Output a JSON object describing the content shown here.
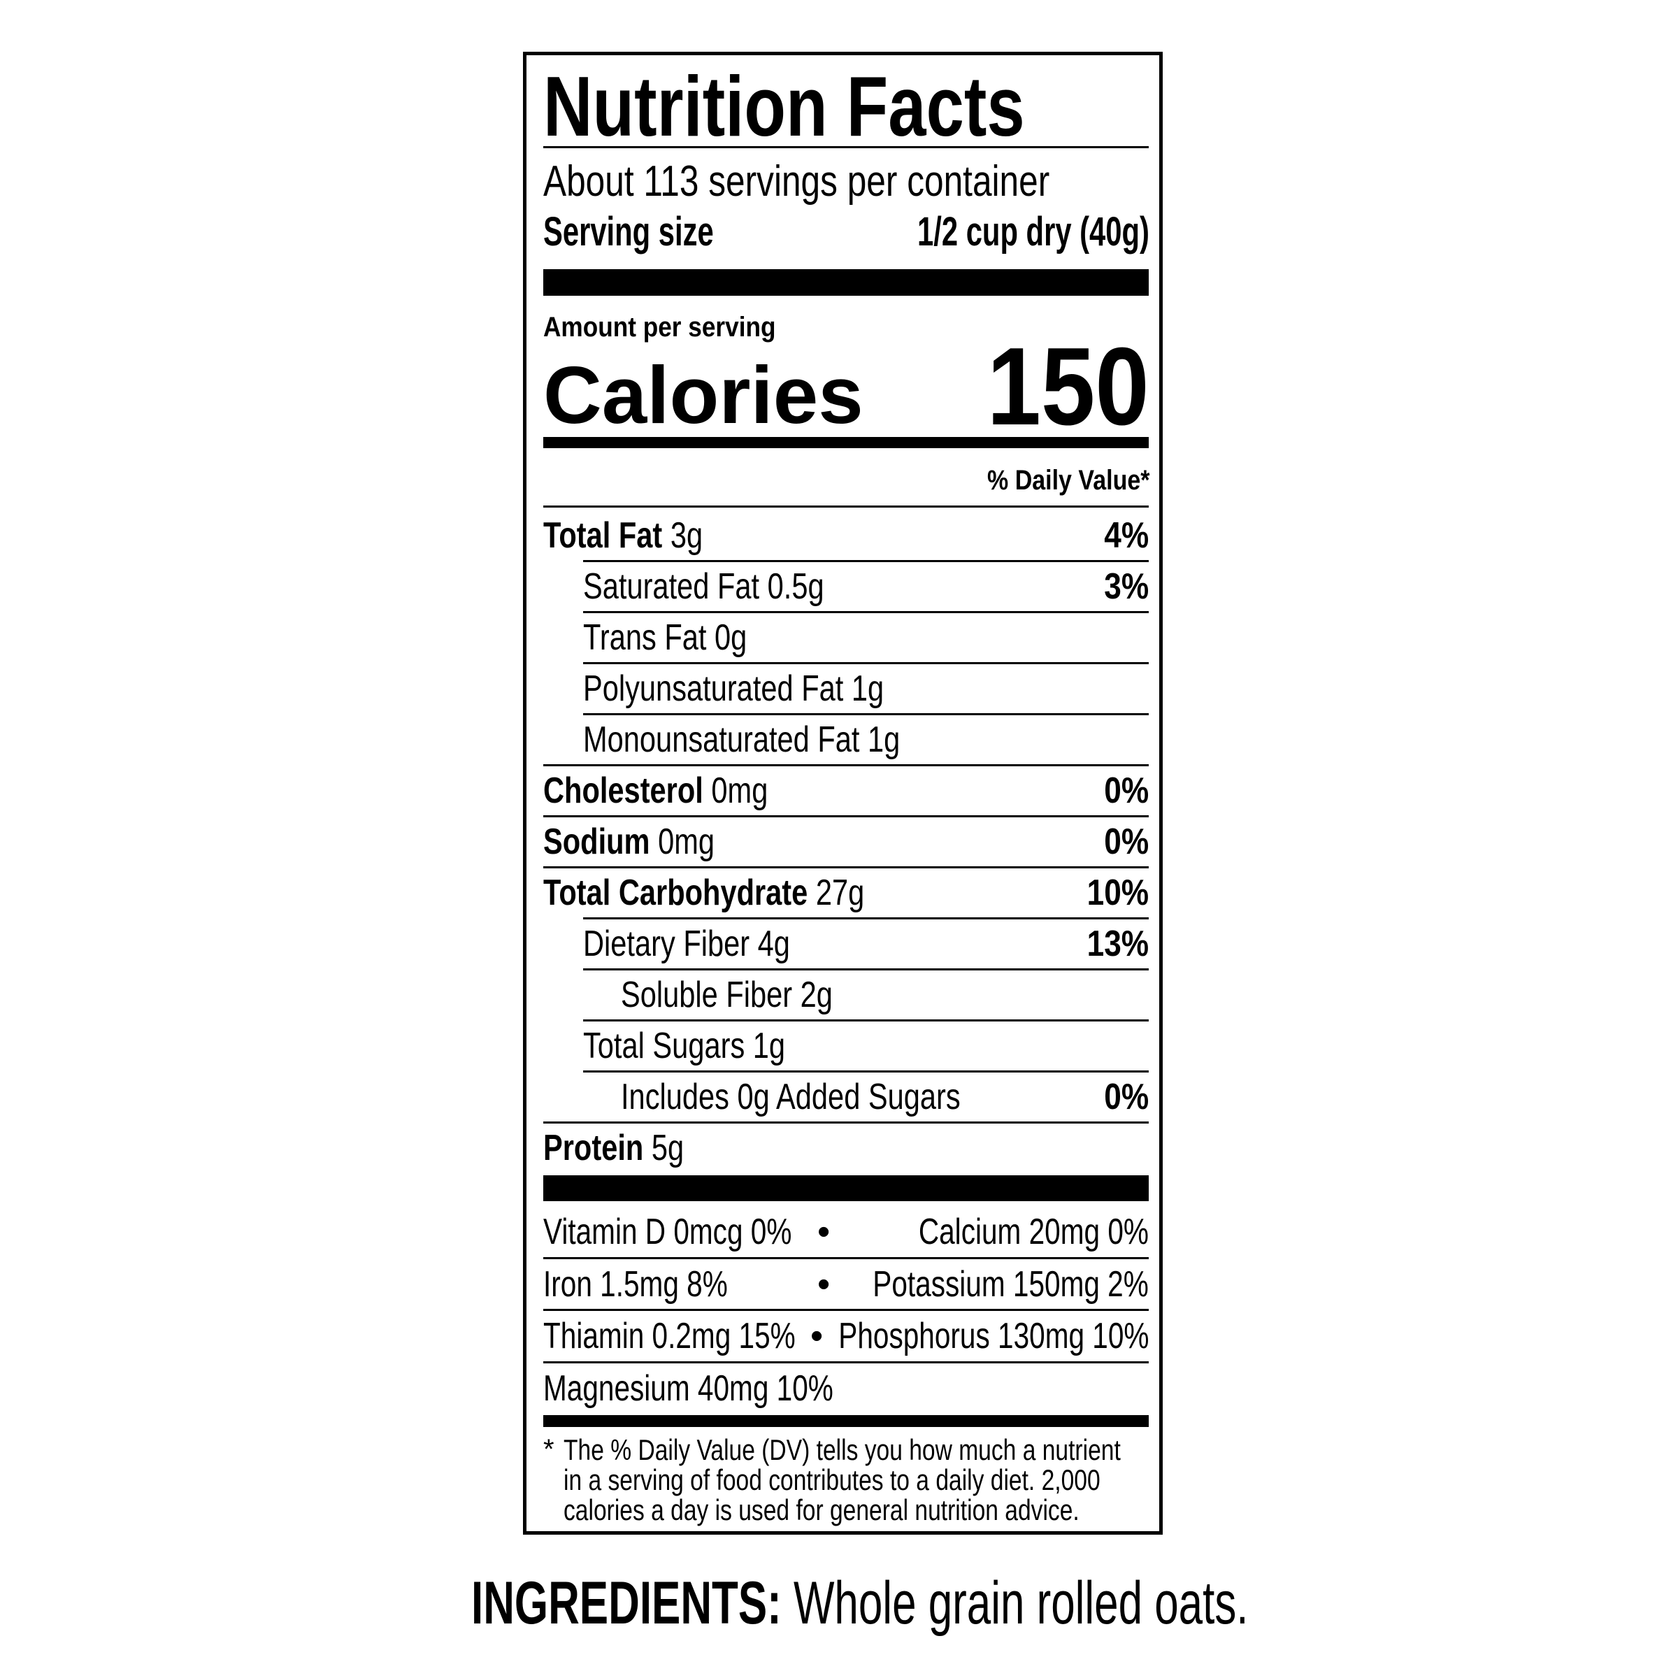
{
  "label": {
    "title": "Nutrition Facts",
    "servings_per_container": "About 113 servings per container",
    "serving_size_label": "Serving size",
    "serving_size_value": "1/2 cup dry (40g)",
    "amount_per_serving": "Amount per serving",
    "calories_label": "Calories",
    "calories_value": "150",
    "daily_value_header": "% Daily Value*",
    "nutrients": [
      {
        "name": "Total Fat",
        "amount": "3g",
        "dv": "4%",
        "bold": true,
        "indent": 0
      },
      {
        "name": "Saturated Fat",
        "amount": "0.5g",
        "dv": "3%",
        "bold": false,
        "indent": 1
      },
      {
        "name": "Trans Fat",
        "amount": "0g",
        "dv": "",
        "bold": false,
        "indent": 1
      },
      {
        "name": "Polyunsaturated Fat",
        "amount": "1g",
        "dv": "",
        "bold": false,
        "indent": 1
      },
      {
        "name": "Monounsaturated Fat",
        "amount": "1g",
        "dv": "",
        "bold": false,
        "indent": 1
      },
      {
        "name": "Cholesterol",
        "amount": "0mg",
        "dv": "0%",
        "bold": true,
        "indent": 0
      },
      {
        "name": "Sodium",
        "amount": "0mg",
        "dv": "0%",
        "bold": true,
        "indent": 0
      },
      {
        "name": "Total Carbohydrate",
        "amount": "27g",
        "dv": "10%",
        "bold": true,
        "indent": 0
      },
      {
        "name": "Dietary Fiber",
        "amount": "4g",
        "dv": "13%",
        "bold": false,
        "indent": 1
      },
      {
        "name": "Soluble Fiber",
        "amount": "2g",
        "dv": "",
        "bold": false,
        "indent": 2
      },
      {
        "name": "Total Sugars",
        "amount": "1g",
        "dv": "",
        "bold": false,
        "indent": 1
      },
      {
        "name": "Includes 0g Added Sugars",
        "amount": "",
        "dv": "0%",
        "bold": false,
        "indent": 2
      },
      {
        "name": "Protein",
        "amount": "5g",
        "dv": "",
        "bold": true,
        "indent": 0
      }
    ],
    "vitamins": [
      {
        "left": "Vitamin D 0mcg 0%",
        "right": "Calcium 20mg 0%"
      },
      {
        "left": "Iron 1.5mg 8%",
        "right": "Potassium 150mg 2%"
      },
      {
        "left": "Thiamin 0.2mg 15%",
        "right": "Phosphorus 130mg 10%"
      },
      {
        "left": "Magnesium 40mg 10%",
        "right": ""
      }
    ],
    "separator": "•",
    "footnote_star": "*",
    "footnote_lines": [
      "The % Daily Value (DV) tells you how much a nutrient",
      "in a serving of food contributes to a daily diet. 2,000",
      "calories a day is used for general nutrition advice."
    ]
  },
  "ingredients": {
    "label": "INGREDIENTS:",
    "text": " Whole grain rolled oats."
  }
}
